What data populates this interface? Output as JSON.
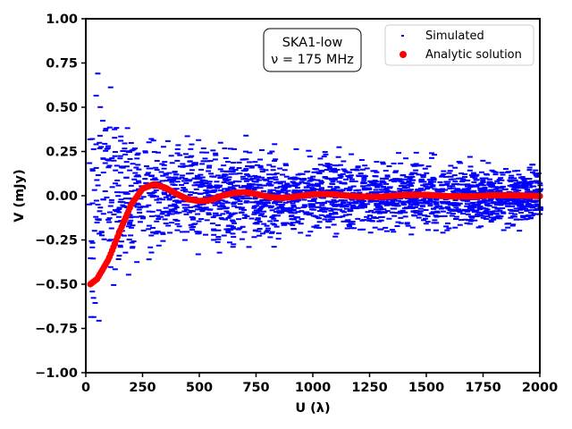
{
  "chart_data": {
    "type": "scatter",
    "title": "",
    "xlabel": "U (λ)",
    "ylabel": "V (mJy)",
    "xlim": [
      0,
      2000
    ],
    "ylim": [
      -1.0,
      1.0
    ],
    "xticks": [
      "0",
      "250",
      "500",
      "750",
      "1000",
      "1250",
      "1500",
      "1750",
      "2000"
    ],
    "xtick_values": [
      0,
      250,
      500,
      750,
      1000,
      1250,
      1500,
      1750,
      2000
    ],
    "yticks": [
      "−1.00",
      "−0.75",
      "−0.50",
      "−0.25",
      "0.00",
      "0.25",
      "0.50",
      "0.75",
      "1.00"
    ],
    "ytick_values": [
      -1.0,
      -0.75,
      -0.5,
      -0.25,
      0.0,
      0.25,
      0.5,
      0.75,
      1.0
    ],
    "annotation": {
      "line1": "SKA1-low",
      "line2": "ν = 175 MHz"
    },
    "legend": {
      "position": "top-right",
      "entries": [
        {
          "label": "Simulated",
          "color": "#0000ff",
          "marker": "dash"
        },
        {
          "label": "Analytic solution",
          "color": "#ff0000",
          "marker": "circle"
        }
      ]
    },
    "series": [
      {
        "name": "Simulated",
        "color": "#0000ff",
        "description_note": "noisy scatter around zero; spread ~±0.6 at U<300 narrowing to ~±0.2 at U=2000",
        "envelope": {
          "u": [
            20,
            100,
            200,
            300,
            500,
            750,
            1000,
            1250,
            1500,
            1750,
            2000
          ],
          "spread": [
            0.8,
            0.6,
            0.45,
            0.35,
            0.3,
            0.27,
            0.24,
            0.22,
            0.2,
            0.19,
            0.18
          ]
        }
      },
      {
        "name": "Analytic solution",
        "color": "#ff0000",
        "u": [
          20,
          50,
          100,
          150,
          200,
          250,
          300,
          350,
          400,
          450,
          500,
          550,
          600,
          650,
          700,
          750,
          800,
          850,
          900,
          950,
          1000,
          1050,
          1100,
          1150,
          1200,
          1300,
          1400,
          1500,
          1600,
          1700,
          1800,
          1900,
          2000
        ],
        "v": [
          -0.5,
          -0.47,
          -0.36,
          -0.2,
          -0.05,
          0.04,
          0.065,
          0.045,
          0.01,
          -0.02,
          -0.03,
          -0.025,
          0.0,
          0.015,
          0.02,
          0.01,
          -0.005,
          -0.012,
          -0.01,
          0.0,
          0.008,
          0.01,
          0.007,
          0.0,
          -0.005,
          -0.006,
          0.004,
          0.005,
          -0.003,
          -0.004,
          0.003,
          0.002,
          -0.002
        ]
      }
    ]
  }
}
